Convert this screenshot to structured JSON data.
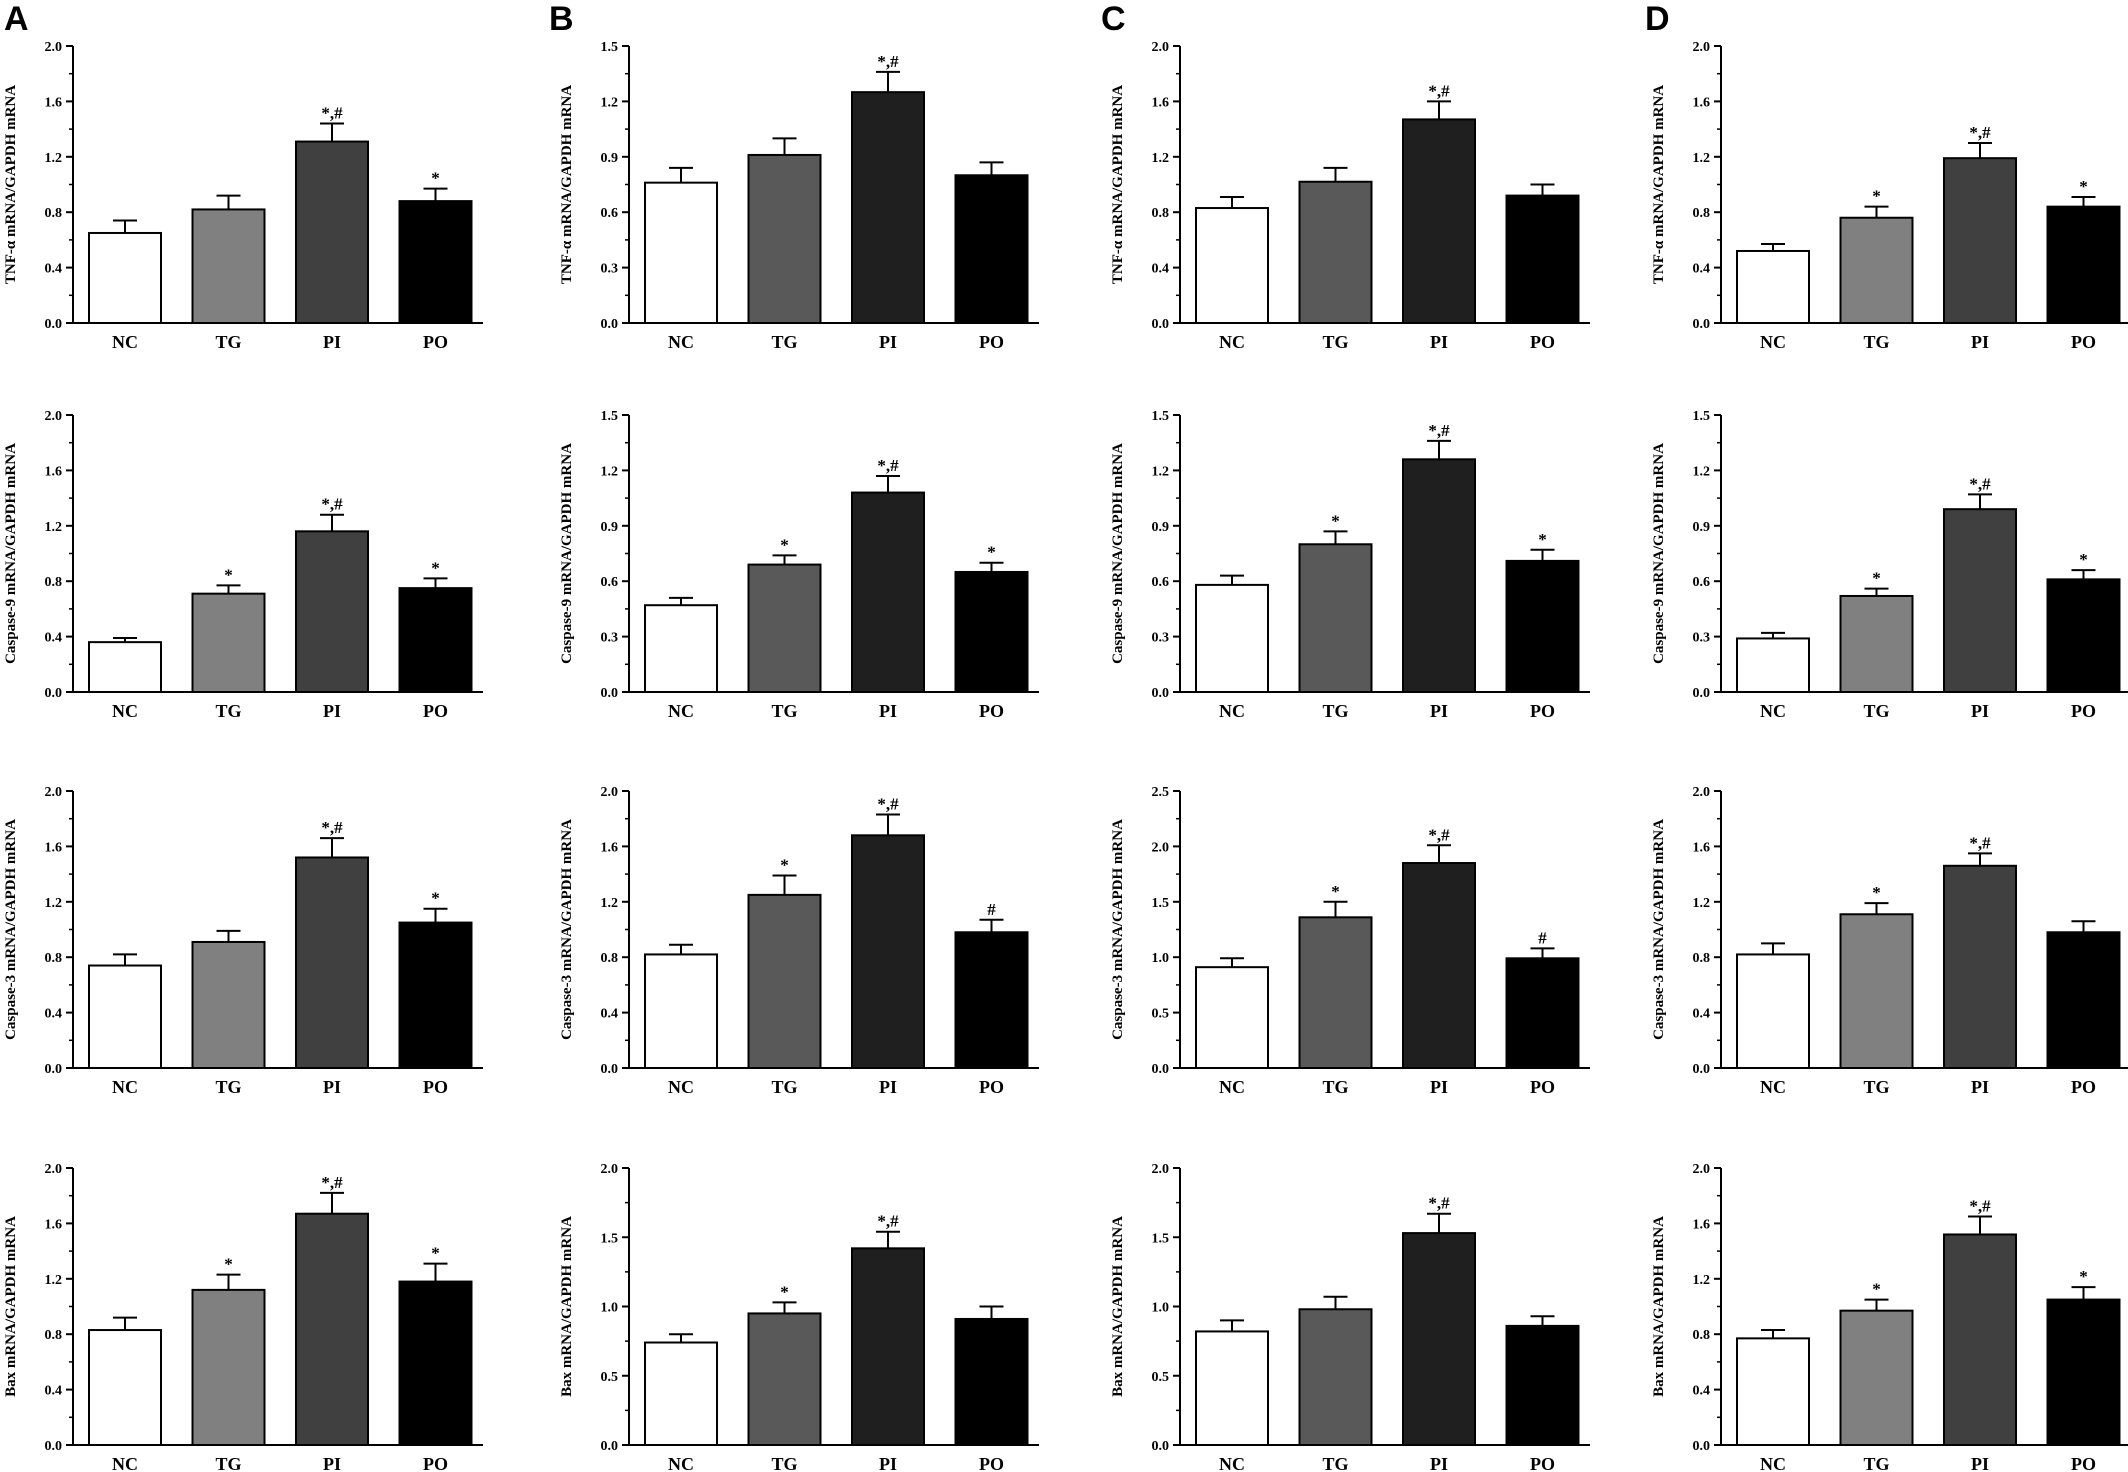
{
  "panel_labels": [
    "A",
    "B",
    "C",
    "D"
  ],
  "chart_data": [
    {
      "type": "bar",
      "panel": "A",
      "row": 0,
      "ylabel": "TNF-α mRNA/GAPDH mRNA",
      "categories": [
        "NC",
        "TG",
        "PI",
        "PO"
      ],
      "values": [
        0.65,
        0.82,
        1.31,
        0.88
      ],
      "errors": [
        0.09,
        0.1,
        0.13,
        0.09
      ],
      "annotations": [
        "",
        "",
        "*,#",
        "*"
      ],
      "ylim": [
        0,
        2.0
      ],
      "yticks": [
        "0.0",
        "0.4",
        "0.8",
        "1.2",
        "1.6",
        "2.0"
      ],
      "bar_colors": [
        "#ffffff",
        "#808080",
        "#404040",
        "#000000"
      ]
    },
    {
      "type": "bar",
      "panel": "B",
      "row": 0,
      "ylabel": "TNF-α mRNA/GAPDH mRNA",
      "categories": [
        "NC",
        "TG",
        "PI",
        "PO"
      ],
      "values": [
        0.76,
        0.91,
        1.25,
        0.8
      ],
      "errors": [
        0.08,
        0.09,
        0.11,
        0.07
      ],
      "annotations": [
        "",
        "",
        "*,#",
        ""
      ],
      "ylim": [
        0,
        1.5
      ],
      "yticks": [
        "0.0",
        "0.3",
        "0.6",
        "0.9",
        "1.2",
        "1.5"
      ],
      "bar_colors": [
        "#ffffff",
        "#595959",
        "#1f1f1f",
        "#000000"
      ]
    },
    {
      "type": "bar",
      "panel": "C",
      "row": 0,
      "ylabel": "TNF-α mRNA/GAPDH mRNA",
      "categories": [
        "NC",
        "TG",
        "PI",
        "PO"
      ],
      "values": [
        0.83,
        1.02,
        1.47,
        0.92
      ],
      "errors": [
        0.08,
        0.1,
        0.13,
        0.08
      ],
      "annotations": [
        "",
        "",
        "*,#",
        ""
      ],
      "ylim": [
        0,
        2.0
      ],
      "yticks": [
        "0.0",
        "0.4",
        "0.8",
        "1.2",
        "1.6",
        "2.0"
      ],
      "bar_colors": [
        "#ffffff",
        "#595959",
        "#1f1f1f",
        "#000000"
      ]
    },
    {
      "type": "bar",
      "panel": "D",
      "row": 0,
      "ylabel": "TNF-α mRNA/GAPDH mRNA",
      "categories": [
        "NC",
        "TG",
        "PI",
        "PO"
      ],
      "values": [
        0.52,
        0.76,
        1.19,
        0.84
      ],
      "errors": [
        0.05,
        0.08,
        0.11,
        0.07
      ],
      "annotations": [
        "",
        "*",
        "*,#",
        "*"
      ],
      "ylim": [
        0,
        2.0
      ],
      "yticks": [
        "0.0",
        "0.4",
        "0.8",
        "1.2",
        "1.6",
        "2.0"
      ],
      "bar_colors": [
        "#ffffff",
        "#808080",
        "#404040",
        "#000000"
      ]
    },
    {
      "type": "bar",
      "panel": "A",
      "row": 1,
      "ylabel": "Caspase-9 mRNA/GAPDH mRNA",
      "categories": [
        "NC",
        "TG",
        "PI",
        "PO"
      ],
      "values": [
        0.36,
        0.71,
        1.16,
        0.75
      ],
      "errors": [
        0.03,
        0.06,
        0.12,
        0.07
      ],
      "annotations": [
        "",
        "*",
        "*,#",
        "*"
      ],
      "ylim": [
        0,
        2.0
      ],
      "yticks": [
        "0.0",
        "0.4",
        "0.8",
        "1.2",
        "1.6",
        "2.0"
      ],
      "bar_colors": [
        "#ffffff",
        "#808080",
        "#404040",
        "#000000"
      ]
    },
    {
      "type": "bar",
      "panel": "B",
      "row": 1,
      "ylabel": "Caspase-9 mRNA/GAPDH mRNA",
      "categories": [
        "NC",
        "TG",
        "PI",
        "PO"
      ],
      "values": [
        0.47,
        0.69,
        1.08,
        0.65
      ],
      "errors": [
        0.04,
        0.05,
        0.09,
        0.05
      ],
      "annotations": [
        "",
        "*",
        "*,#",
        "*"
      ],
      "ylim": [
        0,
        1.5
      ],
      "yticks": [
        "0.0",
        "0.3",
        "0.6",
        "0.9",
        "1.2",
        "1.5"
      ],
      "bar_colors": [
        "#ffffff",
        "#595959",
        "#1f1f1f",
        "#000000"
      ]
    },
    {
      "type": "bar",
      "panel": "C",
      "row": 1,
      "ylabel": "Caspase-9 mRNA/GAPDH mRNA",
      "categories": [
        "NC",
        "TG",
        "PI",
        "PO"
      ],
      "values": [
        0.58,
        0.8,
        1.26,
        0.71
      ],
      "errors": [
        0.05,
        0.07,
        0.1,
        0.06
      ],
      "annotations": [
        "",
        "*",
        "*,#",
        "*"
      ],
      "ylim": [
        0,
        1.5
      ],
      "yticks": [
        "0.0",
        "0.3",
        "0.6",
        "0.9",
        "1.2",
        "1.5"
      ],
      "bar_colors": [
        "#ffffff",
        "#595959",
        "#1f1f1f",
        "#000000"
      ]
    },
    {
      "type": "bar",
      "panel": "D",
      "row": 1,
      "ylabel": "Caspase-9 mRNA/GAPDH mRNA",
      "categories": [
        "NC",
        "TG",
        "PI",
        "PO"
      ],
      "values": [
        0.29,
        0.52,
        0.99,
        0.61
      ],
      "errors": [
        0.03,
        0.04,
        0.08,
        0.05
      ],
      "annotations": [
        "",
        "*",
        "*,#",
        "*"
      ],
      "ylim": [
        0,
        1.5
      ],
      "yticks": [
        "0.0",
        "0.3",
        "0.6",
        "0.9",
        "1.2",
        "1.5"
      ],
      "bar_colors": [
        "#ffffff",
        "#808080",
        "#404040",
        "#000000"
      ]
    },
    {
      "type": "bar",
      "panel": "A",
      "row": 2,
      "ylabel": "Caspase-3 mRNA/GAPDH mRNA",
      "categories": [
        "NC",
        "TG",
        "PI",
        "PO"
      ],
      "values": [
        0.74,
        0.91,
        1.52,
        1.05
      ],
      "errors": [
        0.08,
        0.08,
        0.14,
        0.1
      ],
      "annotations": [
        "",
        "",
        "*,#",
        "*"
      ],
      "ylim": [
        0,
        2.0
      ],
      "yticks": [
        "0.0",
        "0.4",
        "0.8",
        "1.2",
        "1.6",
        "2.0"
      ],
      "bar_colors": [
        "#ffffff",
        "#808080",
        "#404040",
        "#000000"
      ]
    },
    {
      "type": "bar",
      "panel": "B",
      "row": 2,
      "ylabel": "Caspase-3 mRNA/GAPDH mRNA",
      "categories": [
        "NC",
        "TG",
        "PI",
        "PO"
      ],
      "values": [
        0.82,
        1.25,
        1.68,
        0.98
      ],
      "errors": [
        0.07,
        0.14,
        0.15,
        0.09
      ],
      "annotations": [
        "",
        "*",
        "*,#",
        "#"
      ],
      "ylim": [
        0,
        2.0
      ],
      "yticks": [
        "0.0",
        "0.4",
        "0.8",
        "1.2",
        "1.6",
        "2.0"
      ],
      "bar_colors": [
        "#ffffff",
        "#595959",
        "#1f1f1f",
        "#000000"
      ]
    },
    {
      "type": "bar",
      "panel": "C",
      "row": 2,
      "ylabel": "Caspase-3 mRNA/GAPDH mRNA",
      "categories": [
        "NC",
        "TG",
        "PI",
        "PO"
      ],
      "values": [
        0.91,
        1.36,
        1.85,
        0.99
      ],
      "errors": [
        0.08,
        0.14,
        0.16,
        0.09
      ],
      "annotations": [
        "",
        "*",
        "*,#",
        "#"
      ],
      "ylim": [
        0,
        2.5
      ],
      "yticks": [
        "0.0",
        "0.5",
        "1.0",
        "1.5",
        "2.0",
        "2.5"
      ],
      "bar_colors": [
        "#ffffff",
        "#595959",
        "#1f1f1f",
        "#000000"
      ]
    },
    {
      "type": "bar",
      "panel": "D",
      "row": 2,
      "ylabel": "Caspase-3 mRNA/GAPDH mRNA",
      "categories": [
        "NC",
        "TG",
        "PI",
        "PO"
      ],
      "values": [
        0.82,
        1.11,
        1.46,
        0.98
      ],
      "errors": [
        0.08,
        0.08,
        0.09,
        0.08
      ],
      "annotations": [
        "",
        "*",
        "*,#",
        ""
      ],
      "ylim": [
        0,
        2.0
      ],
      "yticks": [
        "0.0",
        "0.4",
        "0.8",
        "1.2",
        "1.6",
        "2.0"
      ],
      "bar_colors": [
        "#ffffff",
        "#808080",
        "#404040",
        "#000000"
      ]
    },
    {
      "type": "bar",
      "panel": "A",
      "row": 3,
      "ylabel": "Bax mRNA/GAPDH mRNA",
      "categories": [
        "NC",
        "TG",
        "PI",
        "PO"
      ],
      "values": [
        0.83,
        1.12,
        1.67,
        1.18
      ],
      "errors": [
        0.09,
        0.11,
        0.15,
        0.13
      ],
      "annotations": [
        "",
        "*",
        "*,#",
        "*"
      ],
      "ylim": [
        0,
        2.0
      ],
      "yticks": [
        "0.0",
        "0.4",
        "0.8",
        "1.2",
        "1.6",
        "2.0"
      ],
      "bar_colors": [
        "#ffffff",
        "#808080",
        "#404040",
        "#000000"
      ]
    },
    {
      "type": "bar",
      "panel": "B",
      "row": 3,
      "ylabel": "Bax mRNA/GAPDH mRNA",
      "categories": [
        "NC",
        "TG",
        "PI",
        "PO"
      ],
      "values": [
        0.74,
        0.95,
        1.42,
        0.91
      ],
      "errors": [
        0.06,
        0.08,
        0.12,
        0.09
      ],
      "annotations": [
        "",
        "*",
        "*,#",
        ""
      ],
      "ylim": [
        0,
        2.0
      ],
      "yticks": [
        "0.0",
        "0.5",
        "1.0",
        "1.5",
        "2.0"
      ],
      "bar_colors": [
        "#ffffff",
        "#595959",
        "#1f1f1f",
        "#000000"
      ]
    },
    {
      "type": "bar",
      "panel": "C",
      "row": 3,
      "ylabel": "Bax mRNA/GAPDH mRNA",
      "categories": [
        "NC",
        "TG",
        "PI",
        "PO"
      ],
      "values": [
        0.82,
        0.98,
        1.53,
        0.86
      ],
      "errors": [
        0.08,
        0.09,
        0.14,
        0.07
      ],
      "annotations": [
        "",
        "",
        "*,#",
        ""
      ],
      "ylim": [
        0,
        2.0
      ],
      "yticks": [
        "0.0",
        "0.5",
        "1.0",
        "1.5",
        "2.0"
      ],
      "bar_colors": [
        "#ffffff",
        "#595959",
        "#1f1f1f",
        "#000000"
      ]
    },
    {
      "type": "bar",
      "panel": "D",
      "row": 3,
      "ylabel": "Bax mRNA/GAPDH mRNA",
      "categories": [
        "NC",
        "TG",
        "PI",
        "PO"
      ],
      "values": [
        0.77,
        0.97,
        1.52,
        1.05
      ],
      "errors": [
        0.06,
        0.08,
        0.13,
        0.09
      ],
      "annotations": [
        "",
        "*",
        "*,#",
        "*"
      ],
      "ylim": [
        0,
        2.0
      ],
      "yticks": [
        "0.0",
        "0.4",
        "0.8",
        "1.2",
        "1.6",
        "2.0"
      ],
      "bar_colors": [
        "#ffffff",
        "#808080",
        "#404040",
        "#000000"
      ]
    }
  ]
}
